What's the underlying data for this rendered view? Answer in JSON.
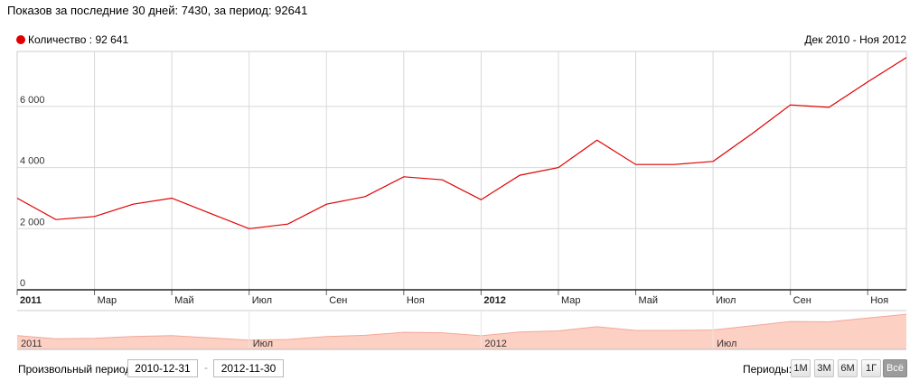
{
  "header": {
    "summary": "Показов за последние 30 дней: 7430, за период: 92641",
    "date_range": "Дек 2010 - Ноя 2012"
  },
  "legend": {
    "label": "Количество : 92 641",
    "color": "#e00000"
  },
  "chart_data": {
    "type": "line",
    "title": "",
    "xlabel": "",
    "ylabel": "",
    "ylim": [
      0,
      7800
    ],
    "yticks": [
      {
        "value": 0,
        "label": "0"
      },
      {
        "value": 2000,
        "label": "2 000"
      },
      {
        "value": 4000,
        "label": "4 000"
      },
      {
        "value": 6000,
        "label": "6 000"
      }
    ],
    "xticks": [
      {
        "index": 0,
        "label": "2011",
        "bold": true
      },
      {
        "index": 2,
        "label": "Мар",
        "bold": false
      },
      {
        "index": 4,
        "label": "Май",
        "bold": false
      },
      {
        "index": 6,
        "label": "Июл",
        "bold": false
      },
      {
        "index": 8,
        "label": "Сен",
        "bold": false
      },
      {
        "index": 10,
        "label": "Ноя",
        "bold": false
      },
      {
        "index": 12,
        "label": "2012",
        "bold": true
      },
      {
        "index": 14,
        "label": "Мар",
        "bold": false
      },
      {
        "index": 16,
        "label": "Май",
        "bold": false
      },
      {
        "index": 18,
        "label": "Июл",
        "bold": false
      },
      {
        "index": 20,
        "label": "Сен",
        "bold": false
      },
      {
        "index": 22,
        "label": "Ноя",
        "bold": false
      }
    ],
    "grid": true,
    "legend_position": "top-left",
    "series": [
      {
        "name": "Количество",
        "color": "#e00000",
        "x": [
          "2010-12",
          "2011-01",
          "2011-02",
          "2011-03",
          "2011-04",
          "2011-05",
          "2011-06",
          "2011-07",
          "2011-08",
          "2011-09",
          "2011-10",
          "2011-11",
          "2011-12",
          "2012-01",
          "2012-02",
          "2012-03",
          "2012-04",
          "2012-05",
          "2012-06",
          "2012-07",
          "2012-08",
          "2012-09",
          "2012-10",
          "2012-11"
        ],
        "values": [
          3000,
          2300,
          2400,
          2800,
          3000,
          2500,
          2000,
          2150,
          2800,
          3050,
          3700,
          3600,
          2950,
          3750,
          4000,
          4900,
          4100,
          4100,
          4200,
          5100,
          6050,
          5970,
          6800,
          7600
        ]
      }
    ],
    "navigator": {
      "labels": [
        {
          "index": 0,
          "label": "2011"
        },
        {
          "index": 6,
          "label": "Июл"
        },
        {
          "index": 12,
          "label": "2012"
        },
        {
          "index": 18,
          "label": "Июл"
        }
      ],
      "fill_color": "#fdd0c4",
      "line_color": "#f2a898"
    }
  },
  "footer": {
    "custom_period_label": "Произвольный период:",
    "date_from": "2010-12-31",
    "date_separator": "-",
    "date_to": "2012-11-30",
    "periods_label": "Периоды:",
    "period_buttons": [
      {
        "label": "1М",
        "active": false
      },
      {
        "label": "3М",
        "active": false
      },
      {
        "label": "6М",
        "active": false
      },
      {
        "label": "1Г",
        "active": false
      },
      {
        "label": "Всё",
        "active": true
      }
    ]
  }
}
